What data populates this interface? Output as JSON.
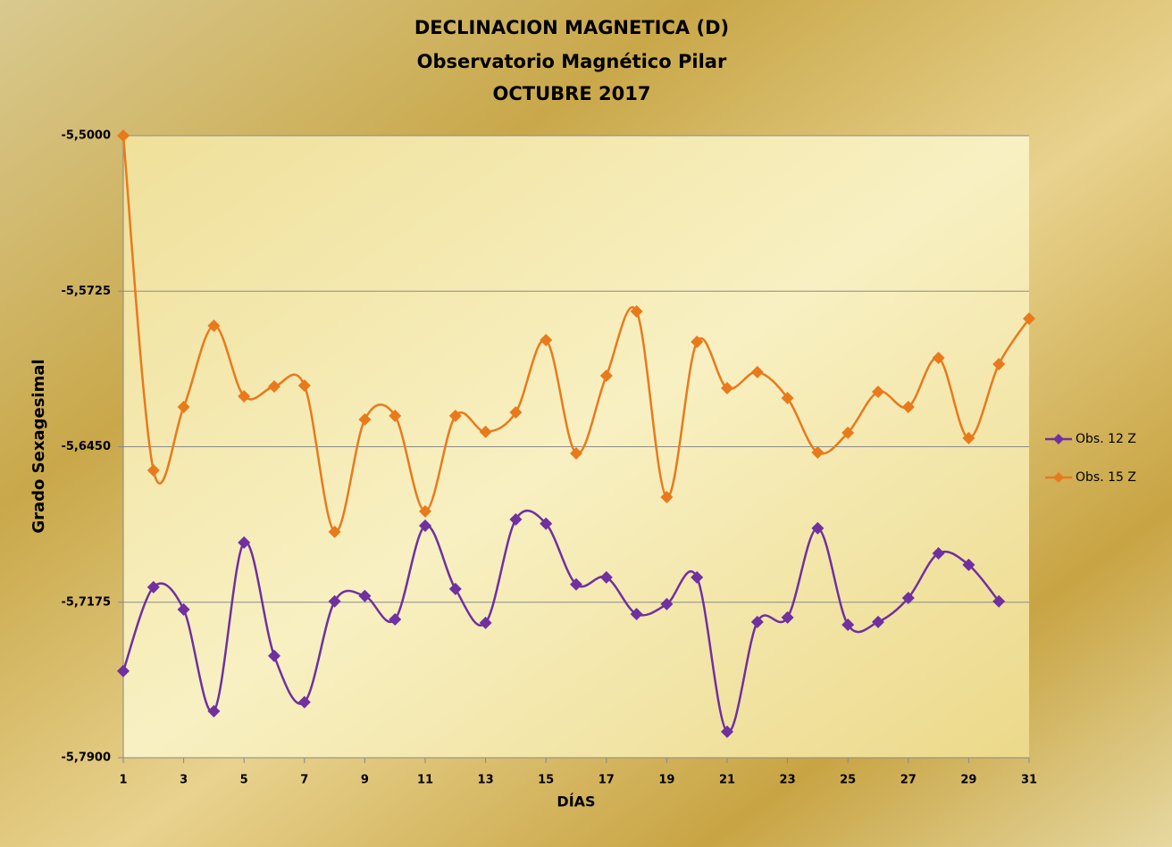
{
  "chart_data": {
    "type": "line",
    "title": [
      "DECLINACION MAGNETICA (D)",
      "Observatorio  Magnético Pilar",
      "OCTUBRE 2017"
    ],
    "x_label": "DÍAS",
    "y_label": "Grado Sexagesimal",
    "x": [
      1,
      2,
      3,
      4,
      5,
      6,
      7,
      8,
      9,
      10,
      11,
      12,
      13,
      14,
      15,
      16,
      17,
      18,
      19,
      20,
      21,
      22,
      23,
      24,
      25,
      26,
      27,
      28,
      29,
      30,
      31
    ],
    "xlim": [
      1,
      31
    ],
    "xticks": [
      1,
      3,
      5,
      7,
      9,
      11,
      13,
      15,
      17,
      19,
      21,
      23,
      25,
      27,
      29,
      31
    ],
    "ylim": [
      -5.79,
      -5.5
    ],
    "yticks": [
      {
        "value": -5.79,
        "label": "-5,7900"
      },
      {
        "value": -5.7175,
        "label": "-5,7175"
      },
      {
        "value": -5.645,
        "label": "-5,6450"
      },
      {
        "value": -5.5725,
        "label": "-5,5725"
      },
      {
        "value": -5.5,
        "label": "-5,5000"
      }
    ],
    "grid": true,
    "smooth": true,
    "legend": "right",
    "series": [
      {
        "name": "Obs. 12 Z",
        "color": "#7030a0",
        "values": [
          -5.7496,
          -5.7105,
          -5.7209,
          -5.7683,
          -5.6897,
          -5.7425,
          -5.7641,
          -5.7171,
          -5.7146,
          -5.7255,
          -5.6818,
          -5.7113,
          -5.7271,
          -5.6789,
          -5.6809,
          -5.7092,
          -5.7059,
          -5.723,
          -5.7184,
          -5.7059,
          -5.7779,
          -5.7267,
          -5.7246,
          -5.683,
          -5.728,
          -5.7267,
          -5.7155,
          -5.6947,
          -5.7001,
          -5.7171,
          null
        ]
      },
      {
        "name": "Obs. 15 Z",
        "color": "#e87a1c",
        "values": [
          -5.5,
          -5.656,
          -5.6265,
          -5.5886,
          -5.6215,
          -5.6169,
          -5.6165,
          -5.6847,
          -5.6323,
          -5.6306,
          -5.6751,
          -5.6306,
          -5.6381,
          -5.629,
          -5.5953,
          -5.6481,
          -5.6119,
          -5.5819,
          -5.6685,
          -5.5961,
          -5.6177,
          -5.6102,
          -5.6223,
          -5.6477,
          -5.6385,
          -5.6194,
          -5.6265,
          -5.6036,
          -5.641,
          -5.6065,
          -5.5853
        ]
      }
    ]
  }
}
